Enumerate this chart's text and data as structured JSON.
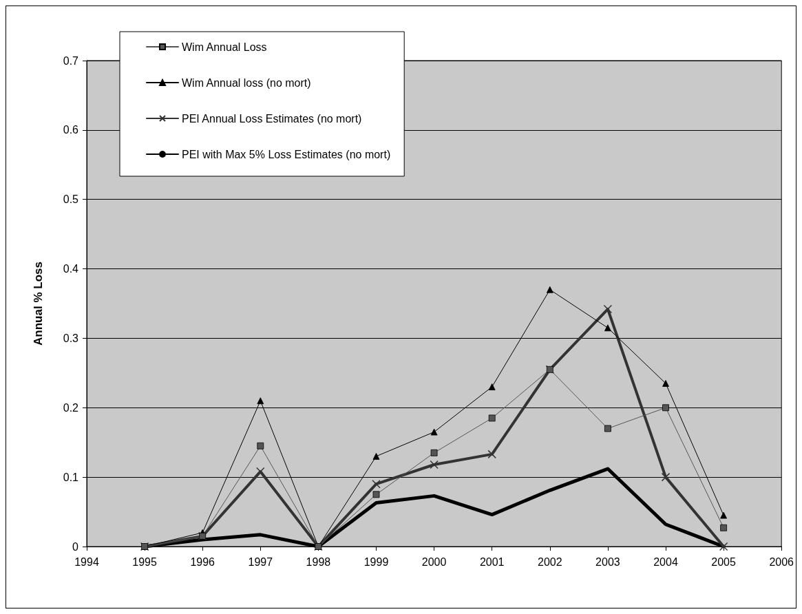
{
  "chart_data": {
    "type": "line",
    "ylabel": "Annual % Loss",
    "x": [
      1995,
      1996,
      1997,
      1998,
      1999,
      2000,
      2001,
      2002,
      2003,
      2004,
      2005
    ],
    "series": [
      {
        "name": "Wim Annual Loss",
        "color": "#555555",
        "marker": "square",
        "values": [
          0,
          0.015,
          0.145,
          0,
          0.075,
          0.135,
          0.185,
          0.255,
          0.17,
          0.2,
          0.027
        ]
      },
      {
        "name": "Wim Annual loss (no mort)",
        "color": "#000000",
        "marker": "triangle",
        "values": [
          0,
          0.02,
          0.21,
          0,
          0.13,
          0.165,
          0.23,
          0.37,
          0.315,
          0.235,
          0.045
        ]
      },
      {
        "name": "PEI Annual Loss Estimates (no mort)",
        "color": "#333333",
        "marker": "cross",
        "values": [
          0,
          0.015,
          0.108,
          0,
          0.09,
          0.118,
          0.133,
          0.255,
          0.342,
          0.1,
          0
        ]
      },
      {
        "name": "PEI with Max 5% Loss Estimates (no mort)",
        "color": "#000000",
        "marker": "none",
        "values": [
          0,
          0.01,
          0.017,
          0,
          0.063,
          0.073,
          0.046,
          0.081,
          0.112,
          0.032,
          0
        ]
      }
    ],
    "xlim": [
      1994,
      2006
    ],
    "xticks": [
      1994,
      1995,
      1996,
      1997,
      1998,
      1999,
      2000,
      2001,
      2002,
      2003,
      2004,
      2005,
      2006
    ],
    "ylim": [
      0,
      0.7
    ],
    "yticks": [
      0,
      0.1,
      0.2,
      0.3,
      0.4,
      0.5,
      0.6,
      0.7
    ],
    "grid": "y",
    "legend": "top left"
  }
}
